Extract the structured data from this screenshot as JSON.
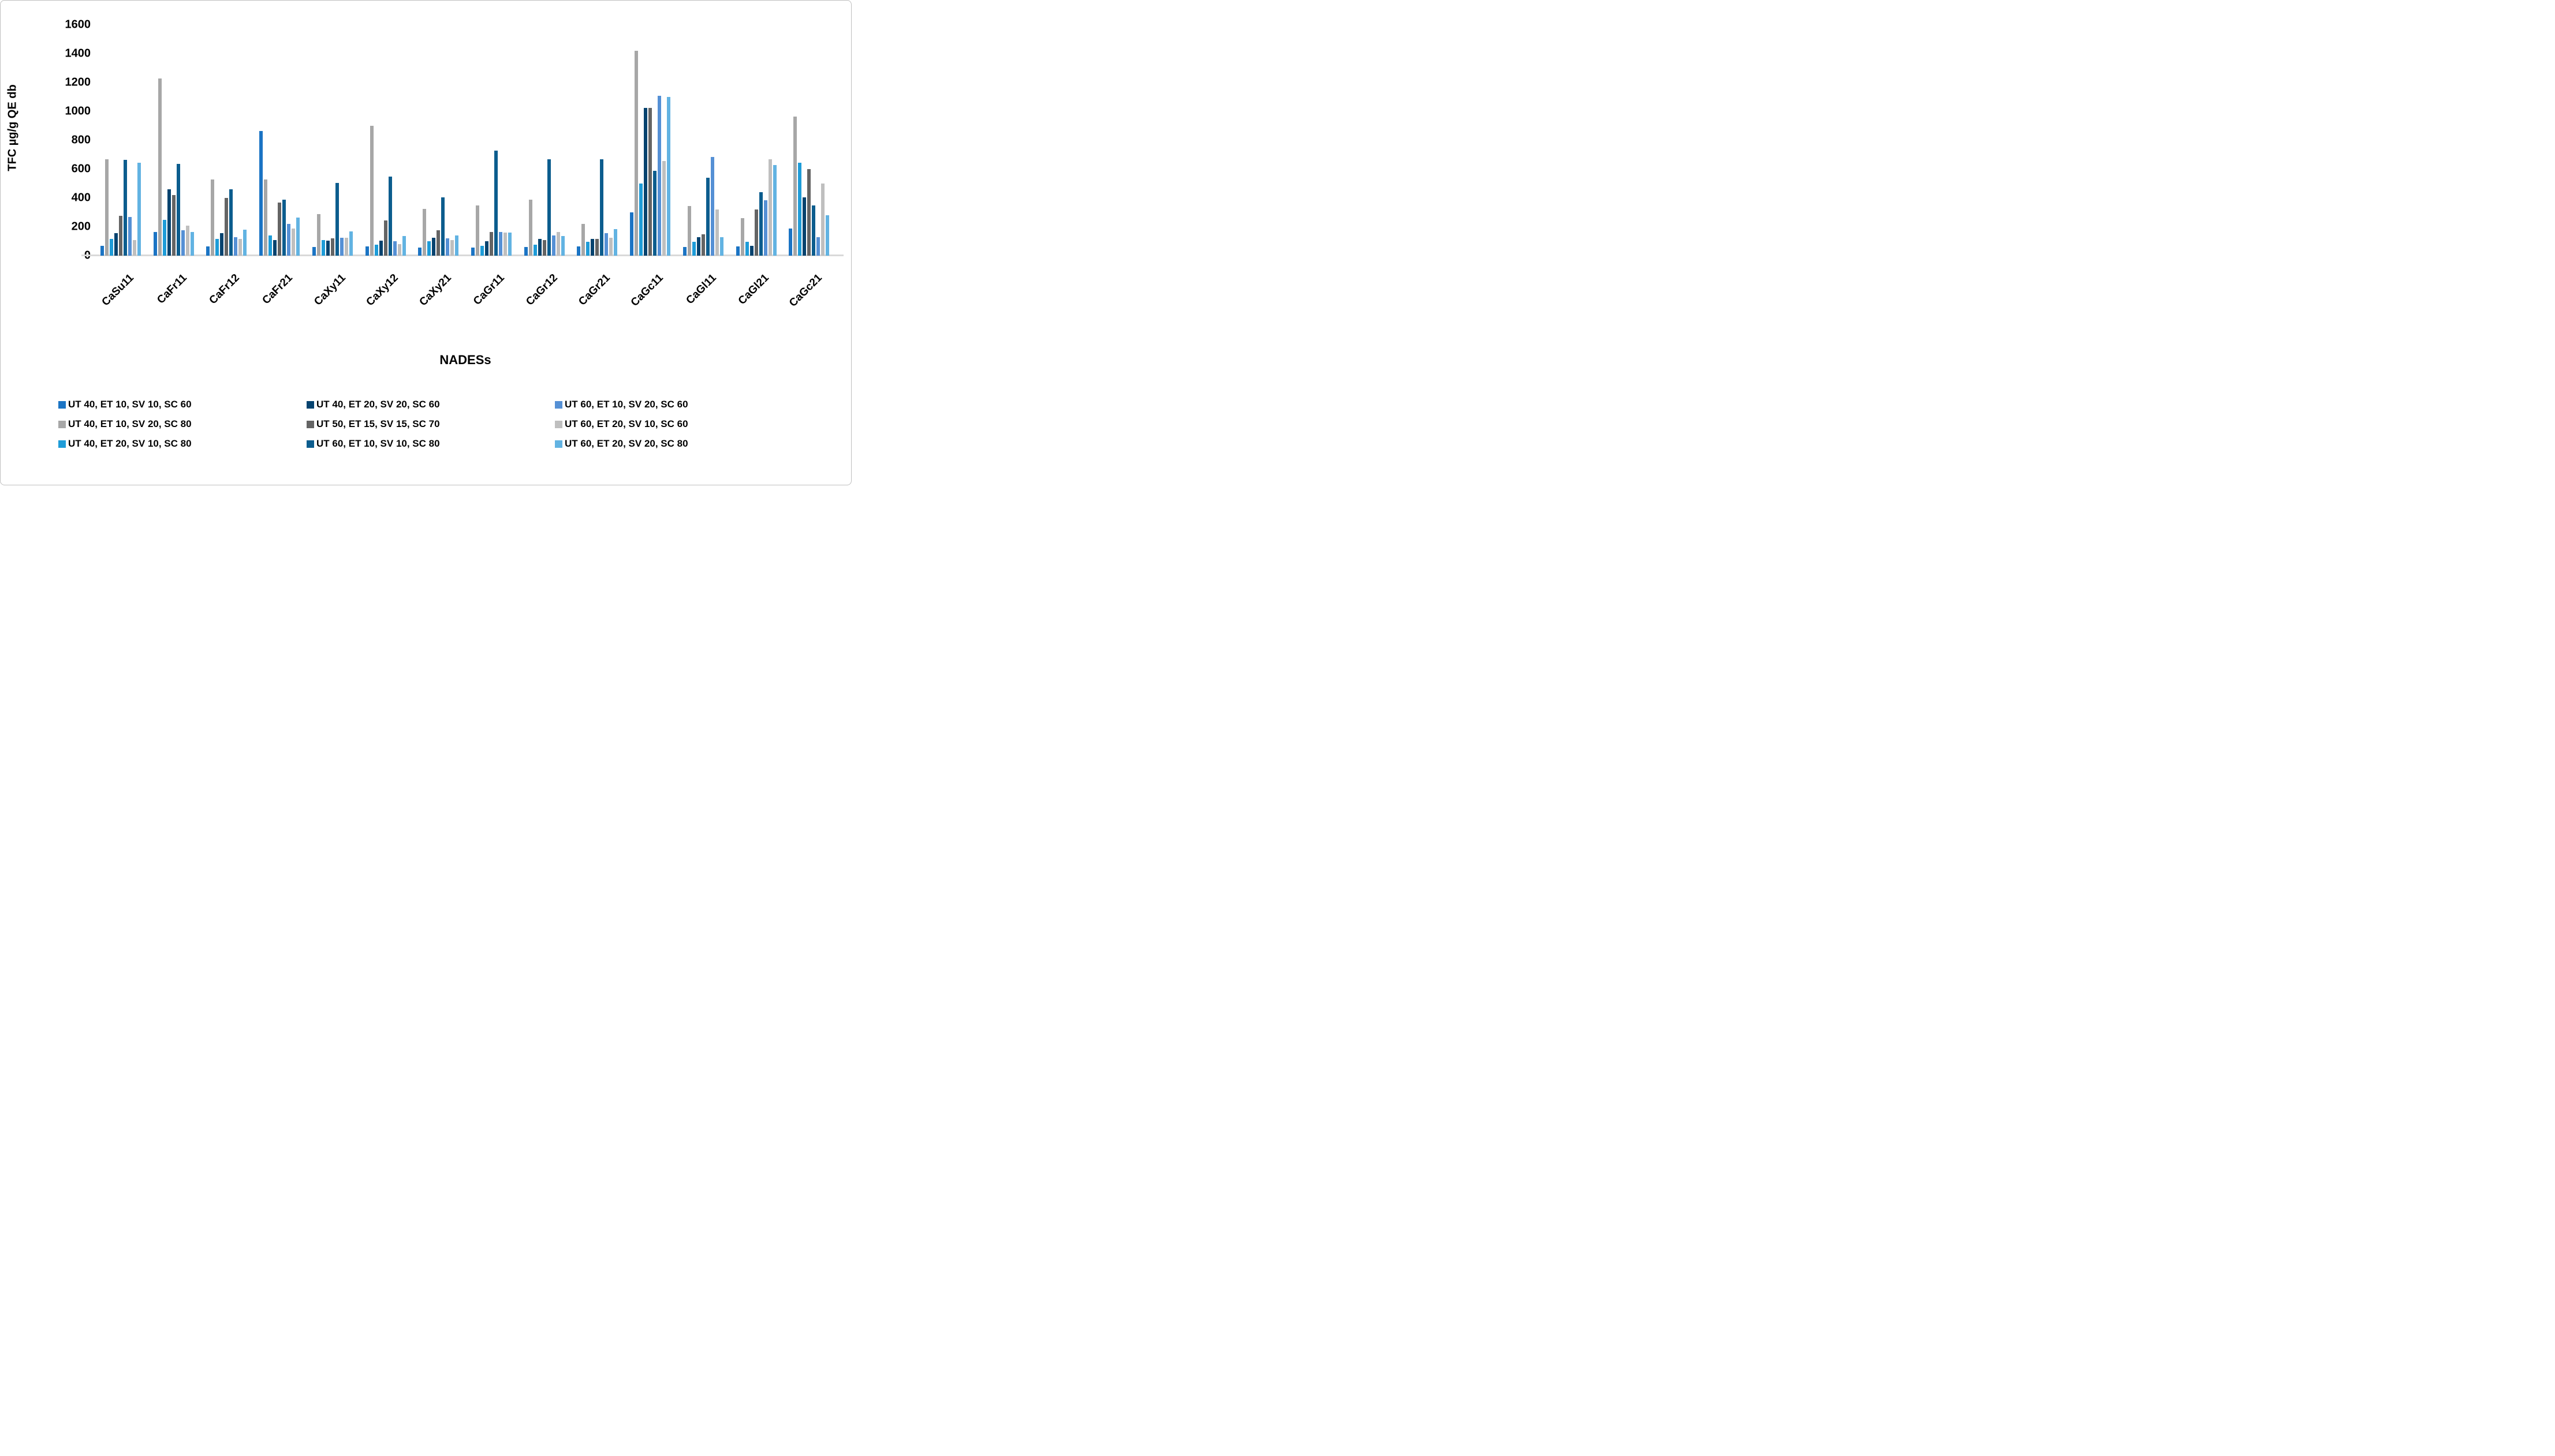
{
  "chart_data": {
    "type": "bar",
    "title": "",
    "xlabel": "NADESs",
    "ylabel": "TFC µg/g QE db",
    "ylim": [
      0,
      1600
    ],
    "y_tick_step": 200,
    "y_tick_labels": [
      "0",
      "200",
      "400",
      "600",
      "800",
      "1000",
      "1200",
      "1400",
      "1600"
    ],
    "grid": false,
    "legend_position": "bottom",
    "axis_line_color": "#d9d9d9",
    "categories": [
      "CaSu11",
      "CaFr11",
      "CaFr12",
      "CaFr21",
      "CaXy11",
      "CaXy12",
      "CaXy21",
      "CaGr11",
      "CaGr12",
      "CaGr21",
      "CaGc11",
      "CaGl11",
      "CaGl21",
      "CaGc21"
    ],
    "series": [
      {
        "name": "UT 40, ET 10, SV 10, SC 60",
        "color": "#1b74c4",
        "values": [
          70,
          165,
          65,
          865,
          60,
          65,
          55,
          55,
          60,
          65,
          300,
          60,
          65,
          190
        ]
      },
      {
        "name": "UT 40, ET 10, SV 20, SC 80",
        "color": "#a7a7a7",
        "values": [
          670,
          1230,
          530,
          530,
          290,
          900,
          325,
          350,
          390,
          220,
          1420,
          345,
          260,
          965
        ]
      },
      {
        "name": "UT 40, ET 20, SV 10, SC 80",
        "color": "#1e9cd8",
        "values": [
          115,
          250,
          115,
          140,
          110,
          75,
          100,
          70,
          75,
          95,
          500,
          95,
          95,
          645
        ]
      },
      {
        "name": "UT 40, ET 20, SV 20, SC 60",
        "color": "#06436f",
        "values": [
          155,
          460,
          155,
          110,
          105,
          105,
          125,
          100,
          115,
          115,
          1025,
          130,
          70,
          405
        ]
      },
      {
        "name": "UT 50, ET 15, SV 15, SC 70",
        "color": "#646464",
        "values": [
          275,
          420,
          400,
          370,
          120,
          245,
          175,
          165,
          110,
          115,
          1025,
          150,
          320,
          600
        ]
      },
      {
        "name": "UT 60, ET 10, SV 10, SC 80",
        "color": "#0c5d8e",
        "values": [
          665,
          635,
          460,
          390,
          505,
          550,
          405,
          730,
          670,
          670,
          590,
          540,
          440,
          350
        ]
      },
      {
        "name": "UT 60, ET 10, SV 20, SC 60",
        "color": "#5590d5",
        "values": [
          270,
          175,
          130,
          220,
          125,
          100,
          120,
          165,
          140,
          155,
          1110,
          685,
          385,
          130
        ]
      },
      {
        "name": "UT 60, ET 20, SV 10, SC 60",
        "color": "#bfbfbf",
        "values": [
          110,
          210,
          115,
          190,
          125,
          80,
          110,
          160,
          165,
          125,
          655,
          320,
          670,
          500
        ]
      },
      {
        "name": "UT 60, ET 20, SV 20, SC 80",
        "color": "#62b3e2",
        "values": [
          645,
          165,
          180,
          265,
          170,
          135,
          140,
          160,
          135,
          185,
          1100,
          130,
          630,
          280
        ]
      }
    ]
  }
}
